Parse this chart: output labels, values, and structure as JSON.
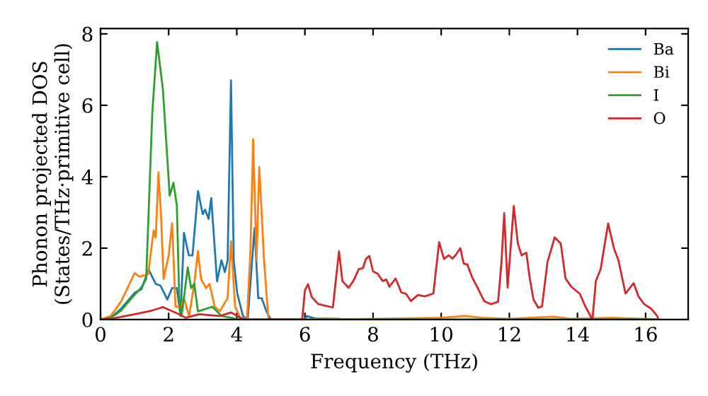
{
  "chart_data": {
    "type": "line",
    "xlabel": "Frequency (THz)",
    "ylabel": "Phonon projected DOS\n(States/THz·primitive cell)",
    "xlim": [
      0,
      17.25
    ],
    "ylim": [
      0,
      8.15
    ],
    "xticks": [
      0,
      2,
      4,
      6,
      8,
      10,
      12,
      14,
      16
    ],
    "yticks": [
      0,
      2,
      4,
      6,
      8
    ],
    "grid": false,
    "legend": "top right",
    "marker": "none",
    "line_style": "solid",
    "series": [
      {
        "name": "Ba",
        "color": "#1f77b4",
        "x": [
          0,
          0.3,
          0.6,
          1.0,
          1.2,
          1.41,
          1.62,
          1.76,
          1.96,
          2.1,
          2.24,
          2.35,
          2.45,
          2.59,
          2.7,
          2.86,
          3.0,
          3.07,
          3.17,
          3.25,
          3.42,
          3.55,
          3.65,
          3.73,
          3.83,
          3.91,
          4.01,
          4.18,
          4.32,
          4.52,
          4.63,
          4.73,
          4.87,
          5.0,
          6.0,
          6.05,
          6.3,
          7.0
        ],
        "values": [
          0,
          0.05,
          0.3,
          0.75,
          0.85,
          1.4,
          1.0,
          0.95,
          0.56,
          0.88,
          0.88,
          0.1,
          2.43,
          1.8,
          1.8,
          3.6,
          2.95,
          3.08,
          2.82,
          3.4,
          1.07,
          1.66,
          1.33,
          1.66,
          6.7,
          1.66,
          0.75,
          0.1,
          0,
          2.56,
          0.6,
          0.6,
          0.23,
          0,
          0,
          0.1,
          0.03,
          0.02
        ]
      },
      {
        "name": "Bi",
        "color": "#ff7f0e",
        "x": [
          0,
          0.3,
          0.6,
          1.0,
          1.15,
          1.4,
          1.5,
          1.56,
          1.62,
          1.7,
          1.78,
          1.85,
          2.0,
          2.1,
          2.2,
          2.35,
          2.45,
          2.6,
          2.75,
          2.86,
          2.95,
          3.1,
          3.2,
          3.35,
          3.5,
          3.73,
          3.83,
          3.95,
          4.1,
          4.3,
          4.4,
          4.48,
          4.58,
          4.66,
          4.8,
          4.93,
          6.0,
          8.0,
          10.0,
          10.7,
          11.2,
          12.0,
          13.3,
          13.8,
          15.0,
          16.0,
          16.4
        ],
        "values": [
          0,
          0.1,
          0.5,
          1.3,
          1.2,
          1.27,
          2.05,
          2.5,
          2.3,
          4.12,
          2.82,
          1.14,
          1.79,
          2.7,
          0.36,
          0.36,
          0.6,
          0.1,
          1.0,
          1.92,
          1.14,
          0.88,
          1.0,
          0.36,
          0.23,
          0.6,
          2.2,
          0.36,
          0.05,
          0,
          1.92,
          5.05,
          1.66,
          4.27,
          1.66,
          0,
          0,
          0.02,
          0.05,
          0.1,
          0.05,
          0.02,
          0.08,
          0.02,
          0.05,
          0.02,
          0
        ]
      },
      {
        "name": "I",
        "color": "#2ca02c",
        "x": [
          0,
          0.3,
          0.6,
          0.93,
          1.2,
          1.34,
          1.52,
          1.66,
          1.83,
          2.03,
          2.14,
          2.24,
          2.31,
          2.38,
          2.56,
          2.66,
          2.75,
          2.86,
          3.28,
          3.55,
          3.83,
          4.1,
          5.0,
          16.4
        ],
        "values": [
          0,
          0.05,
          0.25,
          0.62,
          0.9,
          1.14,
          5.8,
          7.77,
          6.45,
          3.47,
          3.83,
          3.2,
          0.6,
          0.1,
          1.46,
          0.88,
          1.0,
          0.23,
          0.36,
          0.1,
          0.05,
          0,
          0,
          0
        ]
      },
      {
        "name": "O",
        "color": "#d62728",
        "x": [
          0,
          0.3,
          1.0,
          1.5,
          1.83,
          2.3,
          2.5,
          2.9,
          3.5,
          3.83,
          4.2,
          5.92,
          6.0,
          6.09,
          6.2,
          6.4,
          6.82,
          7.0,
          7.1,
          7.28,
          7.42,
          7.58,
          7.7,
          7.79,
          7.89,
          8.0,
          8.14,
          8.28,
          8.39,
          8.48,
          8.66,
          8.83,
          8.97,
          9.11,
          9.32,
          9.52,
          9.77,
          9.94,
          10.08,
          10.22,
          10.33,
          10.42,
          10.56,
          10.66,
          10.77,
          10.91,
          11.05,
          11.26,
          11.46,
          11.67,
          11.77,
          11.85,
          11.95,
          12.13,
          12.25,
          12.36,
          12.5,
          12.6,
          12.71,
          12.85,
          12.96,
          13.12,
          13.33,
          13.51,
          13.65,
          13.82,
          14.07,
          14.23,
          14.44,
          14.54,
          14.68,
          14.9,
          15.07,
          15.2,
          15.41,
          15.65,
          15.79,
          15.96,
          16.17,
          16.34,
          16.38
        ],
        "values": [
          0,
          0.02,
          0.15,
          0.25,
          0.35,
          0.15,
          0.05,
          0.15,
          0.1,
          0.2,
          0,
          0,
          0.82,
          0.99,
          0.63,
          0.43,
          0.34,
          1.91,
          1.08,
          0.89,
          1.08,
          1.41,
          1.44,
          1.7,
          1.78,
          1.35,
          1.28,
          1.08,
          1.12,
          0.92,
          1.15,
          0.76,
          0.72,
          0.52,
          0.69,
          0.65,
          0.73,
          2.17,
          1.7,
          1.8,
          1.71,
          1.8,
          2.0,
          1.57,
          1.54,
          1.18,
          0.92,
          0.52,
          0.43,
          0.5,
          1.61,
          2.98,
          0.89,
          3.18,
          2.13,
          1.8,
          1.87,
          1.15,
          0.56,
          0.33,
          0.37,
          1.61,
          2.3,
          2.13,
          1.15,
          0.92,
          0.72,
          0.37,
          0,
          1.08,
          1.41,
          2.69,
          2.0,
          1.67,
          0.73,
          1.02,
          0.65,
          0.43,
          0.3,
          0.1,
          0
        ]
      }
    ]
  }
}
